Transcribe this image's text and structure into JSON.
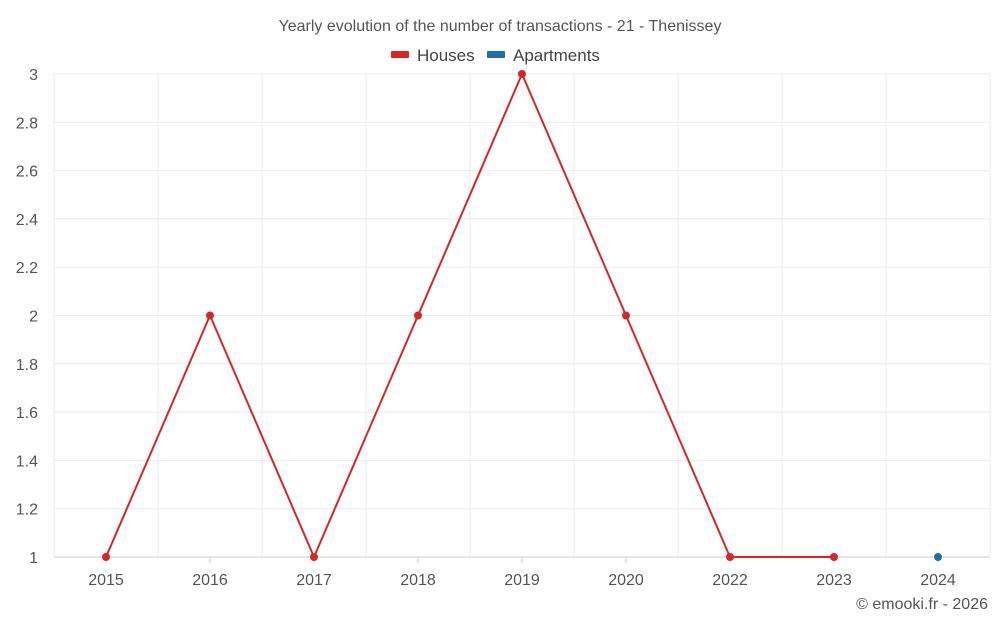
{
  "chart_data": {
    "type": "line",
    "title": "Yearly evolution of the number of transactions - 21 - Thenissey",
    "categories": [
      "2015",
      "2016",
      "2017",
      "2018",
      "2019",
      "2020",
      "2022",
      "2023",
      "2024"
    ],
    "series": [
      {
        "name": "Houses",
        "color": "#d62728",
        "values": [
          1,
          2,
          1,
          2,
          3,
          2,
          1,
          1,
          null
        ]
      },
      {
        "name": "Apartments",
        "color": "#1f6fa3",
        "values": [
          null,
          null,
          null,
          null,
          null,
          null,
          null,
          null,
          1
        ]
      }
    ],
    "yticks": [
      "1",
      "1.2",
      "1.4",
      "1.6",
      "1.8",
      "2",
      "2.2",
      "2.4",
      "2.6",
      "2.8",
      "3"
    ],
    "ylim": [
      1,
      3
    ],
    "grid": true,
    "legend_position": "top-center"
  },
  "credit": "© emooki.fr - 2026"
}
